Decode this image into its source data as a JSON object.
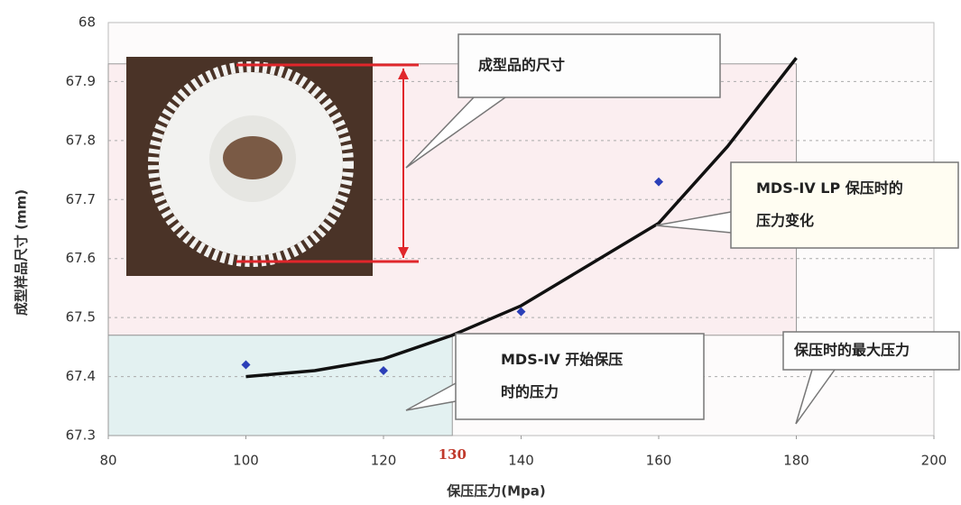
{
  "chart_data": {
    "type": "scatter",
    "xlabel": "保压压力(Mpa)",
    "ylabel": "成型样品尺寸 (mm)",
    "xlim": [
      80,
      200
    ],
    "ylim": [
      67.3,
      68
    ],
    "xticks": [
      80,
      100,
      120,
      140,
      160,
      180,
      200
    ],
    "yticks": [
      67.3,
      67.4,
      67.5,
      67.6,
      67.7,
      67.8,
      67.9,
      68
    ],
    "grid": true,
    "highlight_tick": 130,
    "highlight_color": "#c0392b",
    "regions": [
      {
        "xlim": [
          80,
          180
        ],
        "ylim": [
          67.47,
          67.93
        ],
        "color": "#fbeef0"
      },
      {
        "xlim": [
          80,
          130
        ],
        "ylim": [
          67.3,
          67.47
        ],
        "color": "#e3f1f1"
      }
    ],
    "points": {
      "x": [
        100,
        120,
        140,
        160
      ],
      "values": [
        67.42,
        67.41,
        67.51,
        67.73
      ],
      "color": "#2b3fb8"
    },
    "curve": {
      "x": [
        100,
        110,
        120,
        130,
        140,
        150,
        160,
        170,
        180
      ],
      "values": [
        67.4,
        67.41,
        67.43,
        67.47,
        67.52,
        67.59,
        67.66,
        67.79,
        67.94
      ],
      "color": "#111111"
    },
    "annotations": [
      {
        "lines": [
          "成型品的尺寸"
        ]
      },
      {
        "lines": [
          "MDS-IV LP 保压时的",
          "压力变化"
        ]
      },
      {
        "lines": [
          "MDS-IV 开始保压",
          "时的压力"
        ]
      },
      {
        "lines": [
          "保压时的最大压力"
        ]
      }
    ]
  }
}
